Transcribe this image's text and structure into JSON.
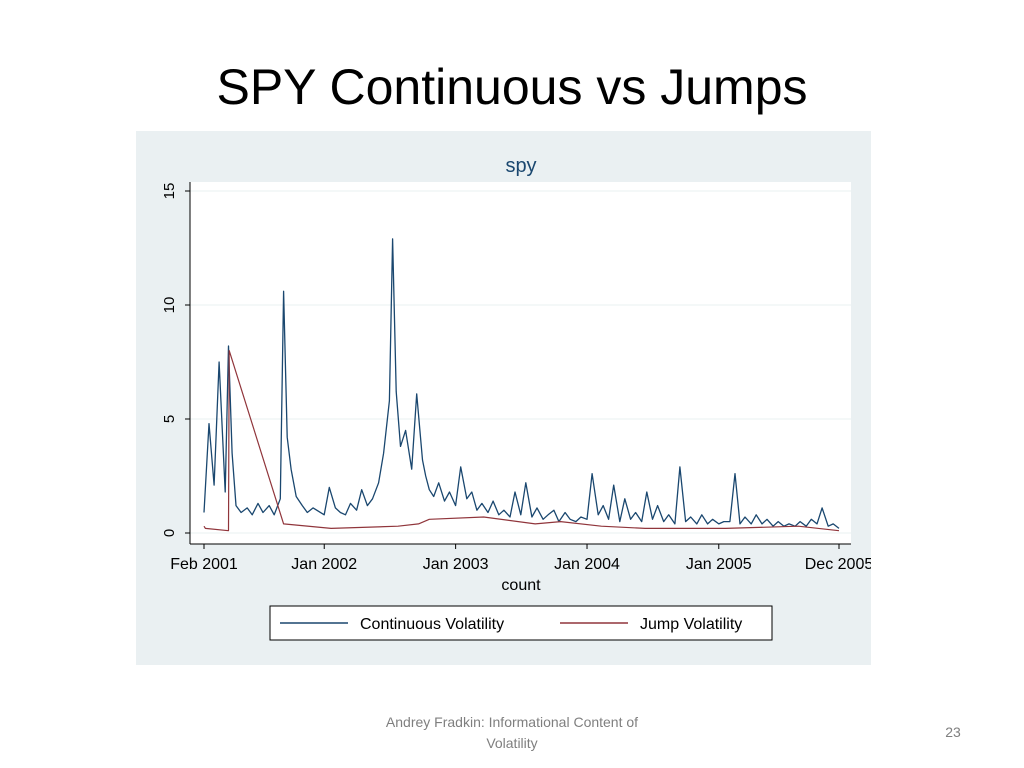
{
  "slide": {
    "title": "SPY Continuous vs Jumps",
    "footer": "Andrey Fradkin: Informational Content of Volatility",
    "page_number": "23"
  },
  "chart_data": {
    "type": "line",
    "title": "spy",
    "xlabel": "count",
    "ylabel": "",
    "ylim": [
      0,
      15
    ],
    "yticks": [
      0,
      5,
      10,
      15
    ],
    "xlim": [
      "2001-02",
      "2005-12"
    ],
    "xticks": [
      "Feb 2001",
      "Jan 2002",
      "Jan 2003",
      "Jan 2004",
      "Jan 2005",
      "Dec 2005"
    ],
    "grid": true,
    "legend_position": "bottom",
    "series": [
      {
        "name": "Continuous Volatility",
        "color": "#1a476f",
        "x": [
          "2001-02",
          "2001-02-15",
          "2001-03",
          "2001-03-15",
          "2001-04",
          "2001-04-10",
          "2001-04-20",
          "2001-05",
          "2001-05-15",
          "2001-06",
          "2001-06-15",
          "2001-07",
          "2001-07-15",
          "2001-08",
          "2001-08-15",
          "2001-09",
          "2001-09-10",
          "2001-09-20",
          "2001-10",
          "2001-10-15",
          "2001-11",
          "2001-11-15",
          "2001-12",
          "2002-01",
          "2002-01-15",
          "2002-02",
          "2002-02-15",
          "2002-03",
          "2002-03-15",
          "2002-04",
          "2002-04-15",
          "2002-05",
          "2002-05-15",
          "2002-06",
          "2002-06-15",
          "2002-07",
          "2002-07-10",
          "2002-07-20",
          "2002-08",
          "2002-08-15",
          "2002-09",
          "2002-09-15",
          "2002-10",
          "2002-10-10",
          "2002-10-20",
          "2002-11",
          "2002-11-15",
          "2002-12",
          "2002-12-15",
          "2003-01",
          "2003-01-15",
          "2003-02",
          "2003-02-15",
          "2003-03",
          "2003-03-15",
          "2003-04",
          "2003-04-15",
          "2003-05",
          "2003-05-15",
          "2003-06",
          "2003-06-15",
          "2003-07",
          "2003-07-15",
          "2003-08",
          "2003-08-15",
          "2003-09",
          "2003-09-15",
          "2003-10",
          "2003-10-15",
          "2003-11",
          "2003-11-15",
          "2003-12",
          "2003-12-15",
          "2004-01",
          "2004-01-15",
          "2004-02",
          "2004-02-15",
          "2004-03",
          "2004-03-15",
          "2004-04",
          "2004-04-15",
          "2004-05",
          "2004-05-15",
          "2004-06",
          "2004-06-15",
          "2004-07",
          "2004-07-15",
          "2004-08",
          "2004-08-15",
          "2004-09",
          "2004-09-15",
          "2004-10",
          "2004-10-15",
          "2004-11",
          "2004-11-15",
          "2004-12",
          "2004-12-15",
          "2005-01",
          "2005-01-15",
          "2005-02",
          "2005-02-15",
          "2005-03",
          "2005-03-15",
          "2005-04",
          "2005-04-15",
          "2005-05",
          "2005-05-15",
          "2005-06",
          "2005-06-15",
          "2005-07",
          "2005-07-15",
          "2005-08",
          "2005-08-15",
          "2005-09",
          "2005-09-15",
          "2005-10",
          "2005-10-15",
          "2005-11",
          "2005-11-15",
          "2005-12"
        ],
        "y": [
          0.9,
          4.8,
          2.1,
          7.5,
          1.8,
          8.2,
          3.5,
          1.2,
          0.9,
          1.1,
          0.8,
          1.3,
          0.9,
          1.2,
          0.8,
          1.5,
          10.6,
          4.2,
          2.8,
          1.6,
          1.2,
          0.9,
          1.1,
          0.8,
          2.0,
          1.1,
          0.9,
          0.8,
          1.3,
          1.0,
          1.9,
          1.2,
          1.5,
          2.2,
          3.5,
          5.8,
          12.9,
          6.2,
          3.8,
          4.5,
          2.8,
          6.1,
          3.2,
          2.5,
          1.9,
          1.6,
          2.2,
          1.4,
          1.8,
          1.2,
          2.9,
          1.5,
          1.8,
          1.0,
          1.3,
          0.9,
          1.4,
          0.8,
          1.0,
          0.7,
          1.8,
          0.8,
          2.2,
          0.7,
          1.1,
          0.6,
          0.8,
          1.0,
          0.5,
          0.9,
          0.6,
          0.5,
          0.7,
          0.6,
          2.6,
          0.8,
          1.2,
          0.6,
          2.1,
          0.5,
          1.5,
          0.6,
          0.9,
          0.5,
          1.8,
          0.6,
          1.2,
          0.5,
          0.8,
          0.4,
          2.9,
          0.5,
          0.7,
          0.4,
          0.8,
          0.4,
          0.6,
          0.4,
          0.5,
          0.5,
          2.6,
          0.4,
          0.7,
          0.4,
          0.8,
          0.4,
          0.6,
          0.3,
          0.5,
          0.3,
          0.4,
          0.3,
          0.5,
          0.3,
          0.6,
          0.4,
          1.1,
          0.3,
          0.4,
          0.2
        ]
      },
      {
        "name": "Jump Volatility",
        "color": "#90353b",
        "x": [
          "2001-02",
          "2001-02-05",
          "2001-04-10",
          "2001-04-12",
          "2001-09-10",
          "2002-01-20",
          "2002-07-25",
          "2002-09-20",
          "2002-10-20",
          "2003-03-20",
          "2003-08-10",
          "2003-10-20",
          "2004-02-10",
          "2004-06-10",
          "2005-01-20",
          "2005-08-10",
          "2005-12"
        ],
        "y": [
          0.3,
          0.2,
          0.1,
          8.0,
          0.4,
          0.2,
          0.3,
          0.4,
          0.6,
          0.7,
          0.4,
          0.5,
          0.3,
          0.2,
          0.2,
          0.3,
          0.1
        ]
      }
    ]
  }
}
